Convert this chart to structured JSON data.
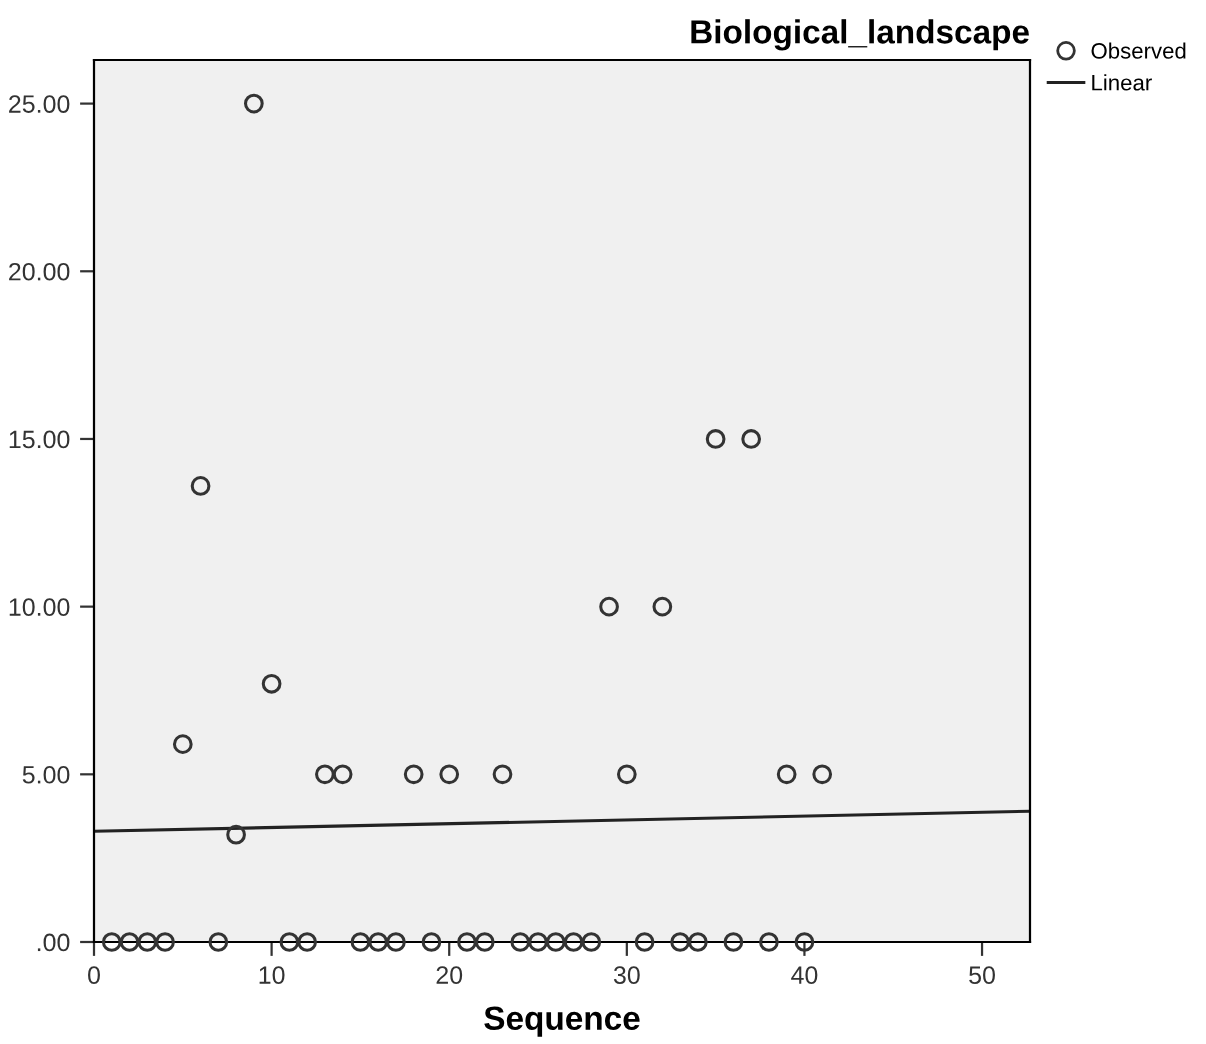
{
  "chart_data": {
    "type": "scatter",
    "title": "Biological_landscape",
    "xlabel": "Sequence",
    "series": [
      {
        "name": "Observed",
        "color": "#333333",
        "marker": "circle",
        "x": [
          1,
          2,
          3,
          4,
          5,
          6,
          7,
          8,
          9,
          10,
          11,
          12,
          13,
          14,
          15,
          16,
          17,
          18,
          19,
          20,
          21,
          22,
          23,
          24,
          25,
          26,
          27,
          28,
          29,
          30,
          31,
          32,
          33,
          34,
          35,
          36,
          37,
          38,
          39,
          40,
          41
        ],
        "values": [
          0,
          0,
          0,
          0,
          5.9,
          13.6,
          0,
          3.2,
          25,
          7.7,
          0,
          0,
          5,
          5,
          0,
          0,
          0,
          5,
          0,
          5,
          0,
          0,
          5,
          0,
          0,
          0,
          0,
          0,
          10,
          5,
          0,
          10,
          0,
          0,
          15,
          0,
          15,
          0,
          5,
          0,
          5
        ]
      },
      {
        "name": "Linear",
        "type": "line",
        "color": "#222222",
        "marker": "none",
        "line_style": "solid",
        "x": [
          0,
          52.7
        ],
        "values": [
          3.3,
          3.9
        ]
      }
    ],
    "xlim": [
      0,
      52.7
    ],
    "ylim": [
      0,
      26.3
    ],
    "xticks": [
      0,
      10,
      20,
      30,
      40,
      50
    ],
    "yticks": [
      {
        "value": 0,
        "label": ".00"
      },
      {
        "value": 5,
        "label": "5.00"
      },
      {
        "value": 10,
        "label": "10.00"
      },
      {
        "value": 15,
        "label": "15.00"
      },
      {
        "value": 20,
        "label": "20.00"
      },
      {
        "value": 25,
        "label": "25.00"
      }
    ],
    "grid": false,
    "legend": "top right"
  }
}
